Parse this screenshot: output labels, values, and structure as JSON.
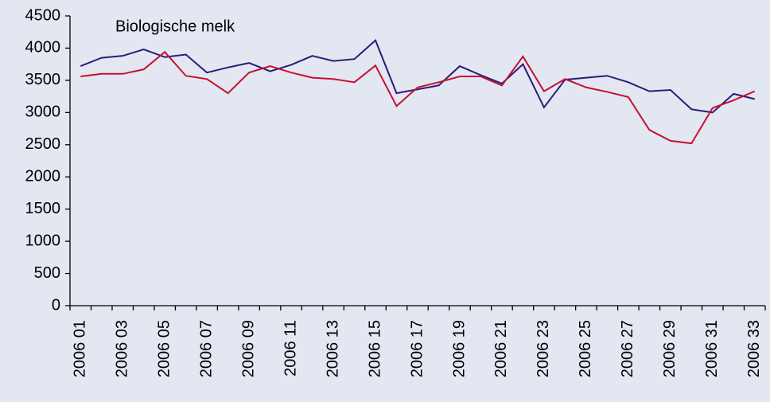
{
  "chart_data": {
    "type": "line",
    "title": "Biologische melk",
    "categories": [
      "2006 01",
      null,
      "2006 03",
      null,
      "2006 05",
      null,
      "2006 07",
      null,
      "2006 09",
      null,
      "2006 11",
      null,
      "2006 13",
      null,
      "2006 15",
      null,
      "2006 17",
      null,
      "2006 19",
      null,
      "2006 21",
      null,
      "2006 23",
      null,
      "2006 25",
      null,
      "2006 27",
      null,
      "2006 29",
      null,
      "2006 31",
      null,
      "2006 33"
    ],
    "series": [
      {
        "color": "#2e1a78",
        "values": [
          3720,
          3850,
          3880,
          3980,
          3860,
          3900,
          3620,
          3700,
          3770,
          3640,
          3740,
          3880,
          3800,
          3830,
          4120,
          3300,
          3360,
          3420,
          3720,
          3580,
          3450,
          3750,
          3080,
          3510,
          3540,
          3570,
          3470,
          3330,
          3350,
          3050,
          3000,
          3290,
          3210
        ]
      },
      {
        "color": "#c41230",
        "values": [
          3560,
          3600,
          3600,
          3670,
          3940,
          3570,
          3520,
          3300,
          3620,
          3720,
          3620,
          3540,
          3520,
          3470,
          3730,
          3100,
          3390,
          3470,
          3560,
          3560,
          3420,
          3870,
          3330,
          3520,
          3390,
          3320,
          3240,
          2730,
          2560,
          2520,
          3070,
          3190,
          3330
        ]
      }
    ],
    "ylim": [
      0,
      4500
    ],
    "yticks": [
      0,
      500,
      1000,
      1500,
      2000,
      2500,
      3000,
      3500,
      4000,
      4500
    ],
    "grid": false
  }
}
